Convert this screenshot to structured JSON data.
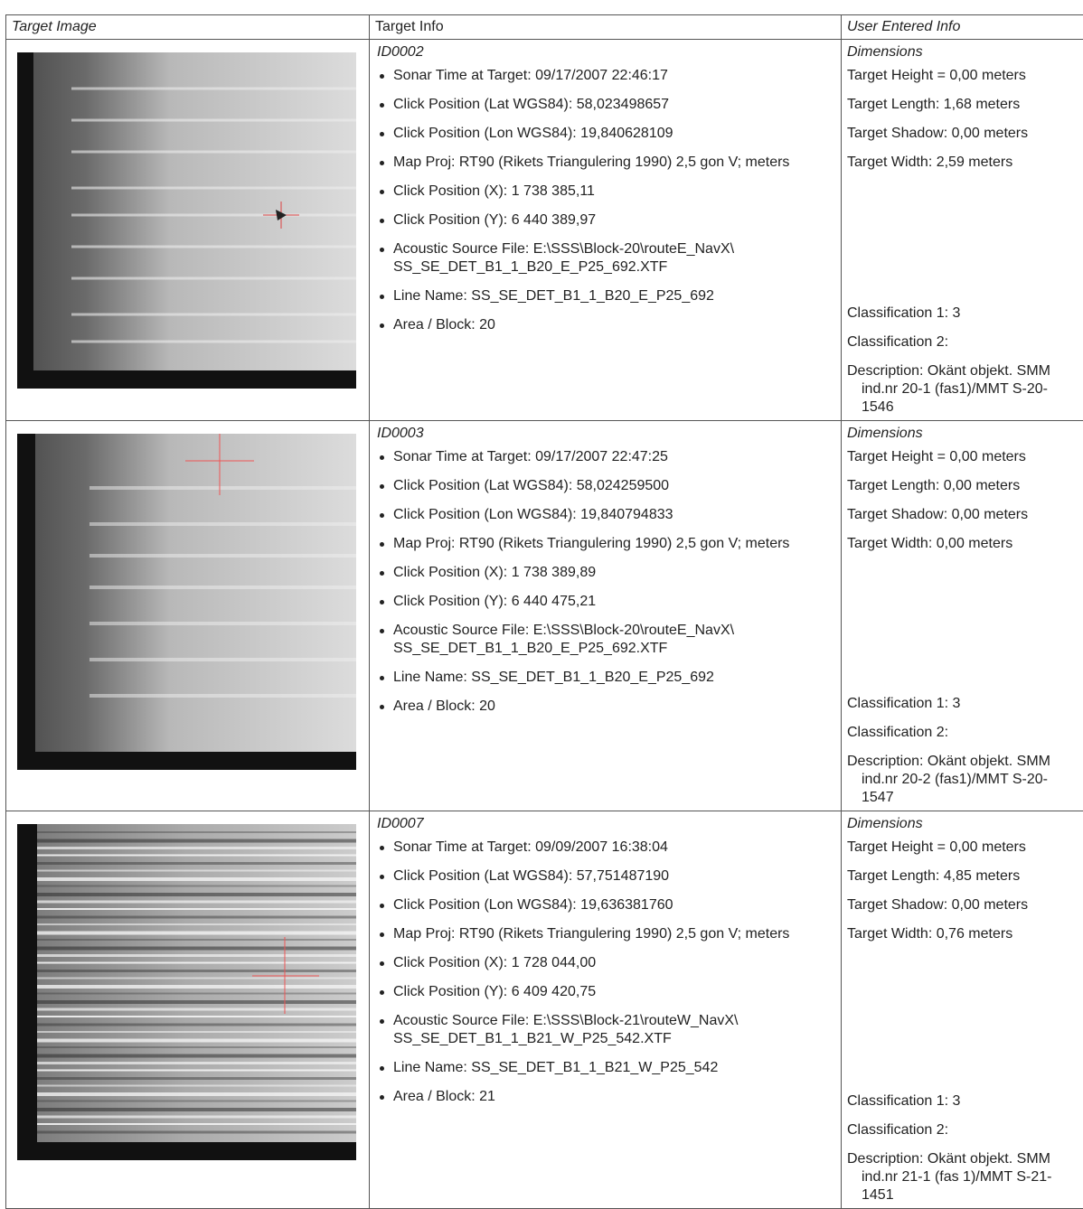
{
  "header": [
    "Target Image",
    "Target Info",
    "User Entered Info"
  ],
  "rows": [
    {
      "id": "ID0002",
      "info": [
        "Sonar Time at Target: 09/17/2007 22:46:17",
        "Click Position (Lat WGS84): 58,023498657",
        "Click Position (Lon WGS84): 19,840628109",
        "Map Proj: RT90 (Rikets Triangulering 1990) 2,5 gon V; meters",
        "Click Position (X): 1 738 385,11",
        "Click Position (Y): 6 440 389,97",
        "Acoustic Source File: E:\\SSS\\Block-20\\routeE_NavX\\ SS_SE_DET_B1_1_B20_E_P25_692.XTF",
        "Line Name: SS_SE_DET_B1_1_B20_E_P25_692",
        "Area / Block: 20"
      ],
      "dimensions_heading": "Dimensions",
      "dimensions": [
        "Target Height = 0,00 meters",
        "Target Length: 1,68 meters",
        "Target Shadow: 0,00 meters",
        "Target Width: 2,59 meters"
      ],
      "classification": [
        "Classification 1: 3",
        "Classification 2:"
      ],
      "description": "Description: Okänt objekt. SMM ind.nr 20-1 (fas1)/MMT S-20-1546"
    },
    {
      "id": "ID0003",
      "info": [
        "Sonar Time at Target: 09/17/2007 22:47:25",
        "Click Position (Lat WGS84): 58,024259500",
        "Click Position (Lon WGS84): 19,840794833",
        "Map Proj: RT90 (Rikets Triangulering 1990) 2,5 gon V; meters",
        "Click Position (X): 1 738 389,89",
        "Click Position (Y): 6 440 475,21",
        "Acoustic Source File: E:\\SSS\\Block-20\\routeE_NavX\\ SS_SE_DET_B1_1_B20_E_P25_692.XTF",
        "Line Name: SS_SE_DET_B1_1_B20_E_P25_692",
        "Area / Block: 20"
      ],
      "dimensions_heading": "Dimensions",
      "dimensions": [
        "Target Height = 0,00 meters",
        "Target Length: 0,00 meters",
        "Target Shadow: 0,00 meters",
        "Target Width: 0,00 meters"
      ],
      "classification": [
        "Classification 1: 3",
        "Classification 2:"
      ],
      "description": "Description: Okänt objekt. SMM ind.nr 20-2 (fas1)/MMT S-20-1547"
    },
    {
      "id": "ID0007",
      "info": [
        "Sonar Time at Target: 09/09/2007 16:38:04",
        "Click Position (Lat WGS84): 57,751487190",
        "Click Position (Lon WGS84): 19,636381760",
        "Map Proj: RT90 (Rikets Triangulering 1990) 2,5 gon V; meters",
        "Click Position (X): 1 728 044,00",
        "Click Position (Y): 6 409 420,75",
        "Acoustic Source File: E:\\SSS\\Block-21\\routeW_NavX\\ SS_SE_DET_B1_1_B21_W_P25_542.XTF",
        "Line Name: SS_SE_DET_B1_1_B21_W_P25_542",
        "Area / Block: 21"
      ],
      "dimensions_heading": "Dimensions",
      "dimensions": [
        "Target Height = 0,00 meters",
        "Target Length: 4,85 meters",
        "Target Shadow: 0,00 meters",
        "Target Width: 0,76 meters"
      ],
      "classification": [
        "Classification 1: 3",
        "Classification 2:"
      ],
      "description": "Description: Okänt objekt. SMM ind.nr 21-1 (fas 1)/MMT S-21-1451"
    }
  ]
}
